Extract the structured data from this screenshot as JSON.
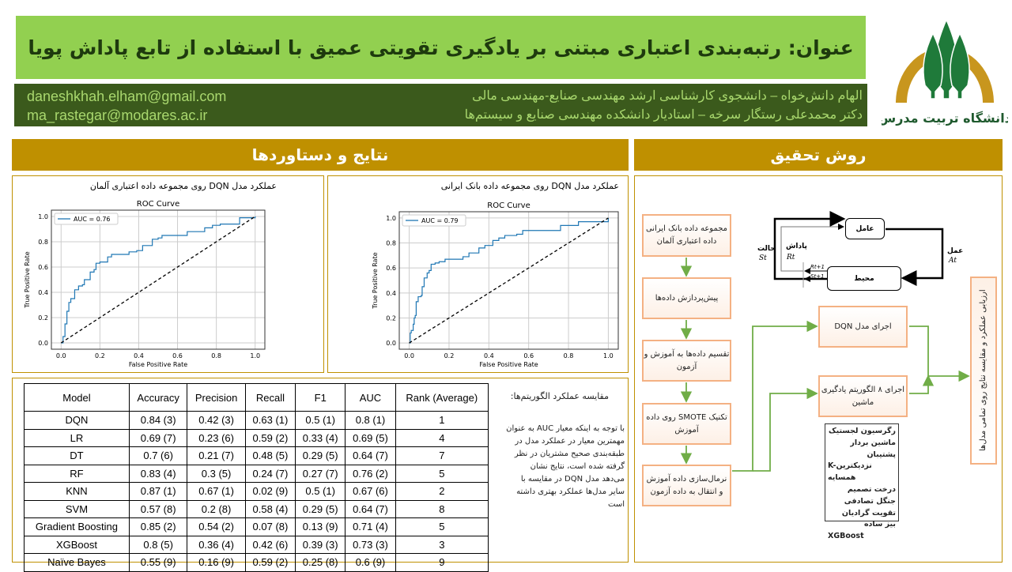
{
  "header": {
    "title": "عنوان: رتبه‌بندی اعتباری مبتنی بر یادگیری تقویتی عمیق با استفاده از تابع پاداش پویا",
    "emails": [
      "daneshkhah.elham@gmail.com",
      "ma_rastegar@modares.ac.ir"
    ],
    "authors": [
      "الهام دانش‌خواه – دانشجوی کارشناسی ارشد مهندسی صنایع-مهندسی مالی",
      "دکتر محمدعلی رستگار سرخه – استادیار دانشکده مهندسی صنایع و سیستم‌ها"
    ],
    "logo_text": "دانشگاه تربیت مدرس"
  },
  "colors": {
    "title_bg": "#92d050",
    "info_bg": "#3b5a1c",
    "section_bg": "#bf9000",
    "box_border": "#f4b183",
    "arrow": "#70ad47",
    "roc_line": "#1f77b4"
  },
  "results": {
    "heading": "نتایج و دستاوردها",
    "charts_caption": [
      "عملکرد مدل DQN روی مجموعه داده اعتباری آلمان",
      "عملکرد مدل DQN روی مجموعه داده بانک ایرانی"
    ],
    "table": {
      "headers": [
        "Model",
        "Accuracy",
        "Precision",
        "Recall",
        "F1",
        "AUC",
        "Rank (Average)"
      ],
      "rows": [
        [
          "DQN",
          "0.84 (3)",
          "0.42 (3)",
          "0.63 (1)",
          "0.5 (1)",
          "0.8 (1)",
          "1"
        ],
        [
          "LR",
          "0.69 (7)",
          "0.23 (6)",
          "0.59 (2)",
          "0.33 (4)",
          "0.69 (5)",
          "4"
        ],
        [
          "DT",
          "0.7 (6)",
          "0.21 (7)",
          "0.48 (5)",
          "0.29 (5)",
          "0.64 (7)",
          "7"
        ],
        [
          "RF",
          "0.83 (4)",
          "0.3 (5)",
          "0.24 (7)",
          "0.27 (7)",
          "0.76 (2)",
          "5"
        ],
        [
          "KNN",
          "0.87 (1)",
          "0.67 (1)",
          "0.02 (9)",
          "0.5 (1)",
          "0.67 (6)",
          "2"
        ],
        [
          "SVM",
          "0.57 (8)",
          "0.2 (8)",
          "0.58 (4)",
          "0.29 (5)",
          "0.64 (7)",
          "8"
        ],
        [
          "Gradient Boosting",
          "0.85 (2)",
          "0.54 (2)",
          "0.07 (8)",
          "0.13 (9)",
          "0.71 (4)",
          "5"
        ],
        [
          "XGBoost",
          "0.8 (5)",
          "0.36 (4)",
          "0.42 (6)",
          "0.39 (3)",
          "0.73 (3)",
          "3"
        ],
        [
          "Naïve Bayes",
          "0.55 (9)",
          "0.16 (9)",
          "0.59 (2)",
          "0.25 (8)",
          "0.6 (9)",
          "9"
        ]
      ]
    },
    "comparison_title": "مقایسه عملکرد الگوریتم‌ها:",
    "comparison_text": "با توجه به اینکه معیار AUC به عنوان مهمترین معیار در عملکرد مدل در طبقه‌بندی صحیح مشتریان در نظر گرفته شده است، نتایج نشان می‌دهد مدل DQN در مقایسه با سایر مدل‌ها عملکرد بهتری داشته است"
  },
  "chart_data": [
    {
      "type": "line",
      "title": "ROC Curve",
      "xlabel": "False Positive Rate",
      "ylabel": "True Positive Rate",
      "xlim": [
        -0.05,
        1.05
      ],
      "ylim": [
        -0.05,
        1.05
      ],
      "grid": true,
      "legend": "top-left",
      "xticks": [
        "0.0",
        "0.2",
        "0.4",
        "0.6",
        "0.8",
        "1.0"
      ],
      "yticks": [
        "0.0",
        "0.2",
        "0.4",
        "0.6",
        "0.8",
        "1.0"
      ],
      "series": [
        {
          "name": "AUC = 0.76",
          "style": "solid",
          "x": [
            0,
            0.01,
            0.02,
            0.03,
            0.04,
            0.05,
            0.07,
            0.07,
            0.09,
            0.09,
            0.11,
            0.12,
            0.14,
            0.15,
            0.17,
            0.18,
            0.2,
            0.22,
            0.24,
            0.26,
            0.32,
            0.35,
            0.39,
            0.42,
            0.45,
            0.47,
            0.5,
            0.52,
            0.62,
            0.65,
            0.7,
            0.74,
            0.78,
            0.82,
            0.9,
            0.92,
            1
          ],
          "y": [
            0,
            0.05,
            0.15,
            0.25,
            0.32,
            0.35,
            0.36,
            0.42,
            0.42,
            0.45,
            0.46,
            0.5,
            0.5,
            0.56,
            0.58,
            0.63,
            0.64,
            0.64,
            0.68,
            0.7,
            0.7,
            0.72,
            0.73,
            0.77,
            0.77,
            0.82,
            0.83,
            0.85,
            0.85,
            0.88,
            0.88,
            0.91,
            0.93,
            0.94,
            0.94,
            0.99,
            1
          ]
        },
        {
          "style": "dashed",
          "x": [
            0,
            1
          ],
          "y": [
            0,
            1
          ]
        }
      ]
    },
    {
      "type": "line",
      "title": "ROC Curve",
      "xlabel": "False Positive Rate",
      "ylabel": "True Positive Rate",
      "xlim": [
        -0.05,
        1.05
      ],
      "ylim": [
        -0.05,
        1.05
      ],
      "grid": true,
      "legend": "top-left",
      "xticks": [
        "0.0",
        "0.2",
        "0.4",
        "0.6",
        "0.8",
        "1.0"
      ],
      "yticks": [
        "0.0",
        "0.2",
        "0.4",
        "0.6",
        "0.8",
        "1.0"
      ],
      "series": [
        {
          "name": "AUC = 0.79",
          "style": "solid",
          "x": [
            0,
            0.005,
            0.01,
            0.02,
            0.025,
            0.03,
            0.035,
            0.045,
            0.06,
            0.065,
            0.075,
            0.09,
            0.1,
            0.11,
            0.13,
            0.15,
            0.18,
            0.25,
            0.27,
            0.3,
            0.33,
            0.35,
            0.38,
            0.41,
            0.42,
            0.45,
            0.48,
            0.5,
            0.54,
            0.57,
            0.74,
            0.76,
            0.83,
            0.85,
            0.99,
            1
          ],
          "y": [
            0,
            0.08,
            0.1,
            0.15,
            0.2,
            0.22,
            0.33,
            0.37,
            0.38,
            0.45,
            0.52,
            0.56,
            0.58,
            0.63,
            0.64,
            0.65,
            0.67,
            0.67,
            0.69,
            0.72,
            0.72,
            0.76,
            0.78,
            0.78,
            0.82,
            0.84,
            0.86,
            0.86,
            0.87,
            0.9,
            0.9,
            0.94,
            0.94,
            0.97,
            0.97,
            1
          ]
        },
        {
          "style": "dashed",
          "x": [
            0,
            1
          ],
          "y": [
            0,
            1
          ]
        }
      ]
    }
  ],
  "method": {
    "heading": "روش تحقیق",
    "steps": [
      "مجموعه داده بانک ایرانی داده اعتباری آلمان",
      "پیش‌پردازش داده‌ها",
      "تقسیم داده‌ها به آموزش و آزمون",
      "تکنیک SMOTE روی داده آموزش",
      "نرمال‌سازی داده آموزش و انتقال به داده آزمون"
    ],
    "dqn": "اجرای مدل DQN",
    "ml": "اجرای ۸ الگوریتم یادگیری ماشین",
    "evaluation": "ارزیابی عملکرد و مقایسه نتایج روی تمامی مدل‌ها",
    "algorithms": [
      "رگرسیون لجستیک",
      "ماشین بردار پشتیبان",
      "K-نزدیکترین همسایه",
      "درخت تصمیم",
      "جنگل تصادفی",
      "تقویت گرادیان",
      "بیز ساده",
      "XGBoost"
    ],
    "rl": {
      "agent": "عامل",
      "environment": "محیط",
      "state": "حالت",
      "state_sym": "St",
      "reward": "پاداش",
      "reward_sym": "Rt",
      "action": "عمل",
      "action_sym": "At",
      "r_next": "Rt+1",
      "s_next": "St+1"
    }
  }
}
